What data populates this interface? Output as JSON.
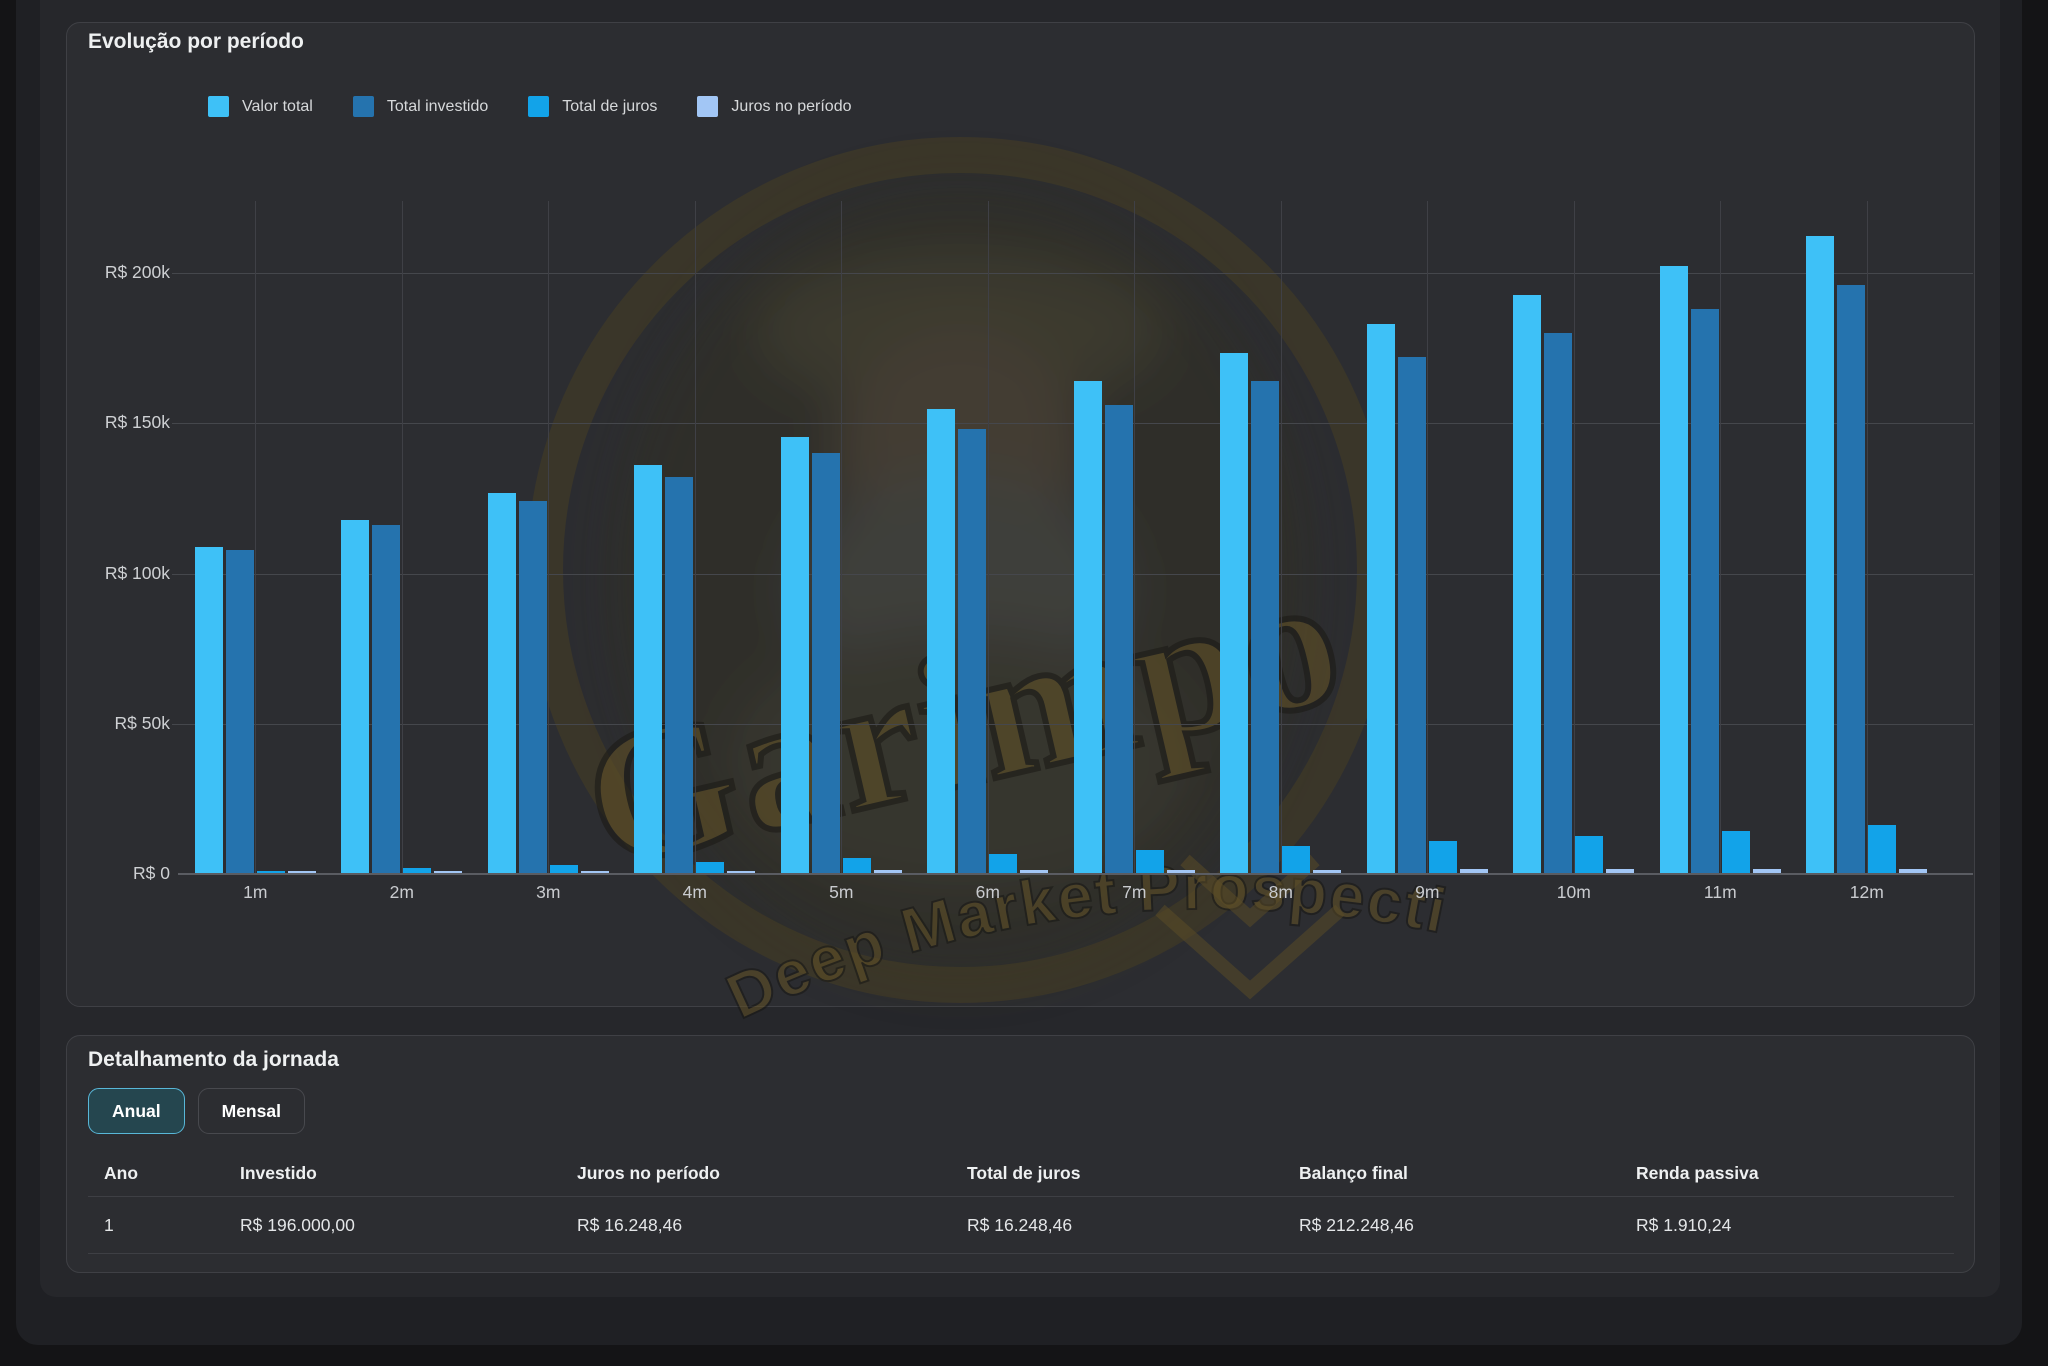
{
  "watermark": {
    "brand": "Garimpo",
    "tagline": "Deep Market Prospecting"
  },
  "chart_card": {
    "title": "Evolução por período"
  },
  "chart_data": {
    "type": "bar",
    "title": "Evolução por período",
    "categories": [
      "1m",
      "2m",
      "3m",
      "4m",
      "5m",
      "6m",
      "7m",
      "8m",
      "9m",
      "10m",
      "11m",
      "12m"
    ],
    "series": [
      {
        "name": "Valor total",
        "color": "#3ec1f7",
        "values": [
          108900,
          117880,
          126941,
          136084,
          145308,
          154616,
          164007,
          173484,
          183045,
          192692,
          202426,
          212248
        ]
      },
      {
        "name": "Total investido",
        "color": "#2573ae",
        "values": [
          108000,
          116000,
          124000,
          132000,
          140000,
          148000,
          156000,
          164000,
          172000,
          180000,
          188000,
          196000
        ]
      },
      {
        "name": "Total de juros",
        "color": "#12a3e9",
        "values": [
          900,
          1880,
          2941,
          4083,
          5308,
          6616,
          8008,
          9484,
          11045,
          12692,
          14427,
          16248
        ]
      },
      {
        "name": "Juros no período",
        "color": "#a2c6f5",
        "values": [
          900,
          980,
          1061,
          1142,
          1225,
          1308,
          1392,
          1476,
          1561,
          1647,
          1734,
          1822
        ]
      }
    ],
    "yticks": [
      {
        "label": "R$ 200k",
        "value": 200000
      },
      {
        "label": "R$ 150k",
        "value": 150000
      },
      {
        "label": "R$ 100k",
        "value": 100000
      },
      {
        "label": "R$ 50k",
        "value": 50000
      },
      {
        "label": "R$ 0",
        "value": 0
      }
    ],
    "ylim": [
      0,
      220000
    ],
    "xlabel": "",
    "ylabel": "",
    "grid": true,
    "legend_position": "top"
  },
  "detail_card": {
    "title": "Detalhamento da jornada",
    "buttons": {
      "annual": "Anual",
      "monthly": "Mensal",
      "active": "Anual"
    },
    "table": {
      "headers": [
        "Ano",
        "Investido",
        "Juros no período",
        "Total de juros",
        "Balanço final",
        "Renda passiva"
      ],
      "rows": [
        [
          "1",
          "R$ 196.000,00",
          "R$ 16.248,46",
          "R$ 16.248,46",
          "R$ 212.248,46",
          "R$ 1.910,24"
        ]
      ]
    }
  }
}
